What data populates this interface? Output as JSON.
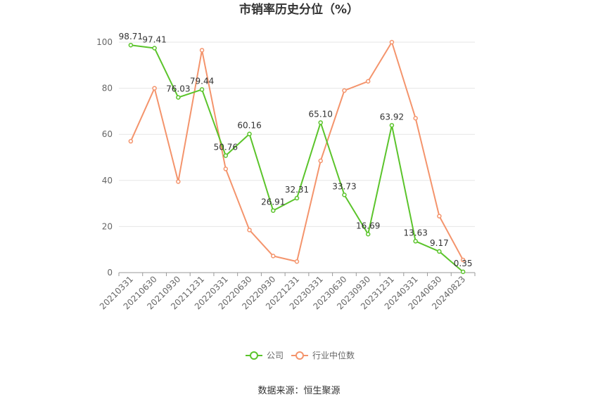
{
  "chart_data": {
    "type": "line",
    "title": "市销率历史分位（%）",
    "categories": [
      "20210331",
      "20210630",
      "20210930",
      "20211231",
      "20220331",
      "20220630",
      "20220930",
      "20221231",
      "20230331",
      "20230630",
      "20230930",
      "20231231",
      "20240331",
      "20240630",
      "20240823"
    ],
    "ylim": [
      0,
      100
    ],
    "yticks": [
      0,
      20,
      40,
      60,
      80,
      100
    ],
    "grid": true,
    "legend_position": "bottom",
    "series": [
      {
        "name": "公司",
        "color": "#5bc42b",
        "values": [
          98.71,
          97.41,
          76.03,
          79.44,
          50.76,
          60.16,
          26.91,
          32.31,
          65.1,
          33.73,
          16.69,
          63.92,
          13.63,
          9.17,
          0.35
        ],
        "labels": [
          "98.71",
          "97.41",
          "76.03",
          "79.44",
          "50.76",
          "60.16",
          "26.91",
          "32.31",
          "65.10",
          "33.73",
          "16.69",
          "63.92",
          "13.63",
          "9.17",
          "0.35"
        ]
      },
      {
        "name": "行业中位数",
        "color": "#f4946c",
        "values": [
          57,
          80,
          39.5,
          96.5,
          45,
          18.5,
          7.2,
          4.8,
          48.5,
          79,
          83,
          100,
          67,
          24.5,
          5.5
        ]
      }
    ],
    "source": "数据来源：恒生聚源"
  }
}
